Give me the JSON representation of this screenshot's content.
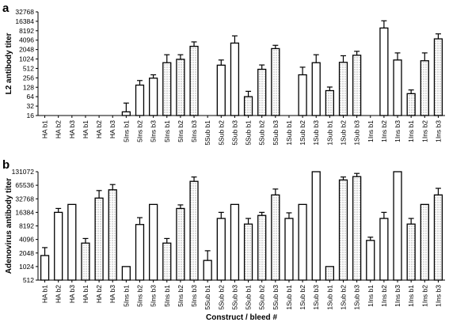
{
  "chart_data": [
    {
      "type": "bar",
      "panel": "a",
      "title": "",
      "xlabel": "",
      "ylabel": "L2 antibody titer",
      "yscale": "log2",
      "ylim": [
        16,
        32768
      ],
      "yticks": [
        "16",
        "32",
        "64",
        "128",
        "256",
        "512",
        "1024",
        "2048",
        "4096",
        "8192",
        "16384",
        "32768"
      ],
      "categories": [
        "HA b1",
        "HA b2",
        "HA b3",
        "HA b1",
        "HA b2",
        "HA b3",
        "5Ins b1",
        "5Ins b2",
        "5Ins b3",
        "5Ins b1",
        "5Ins b2",
        "5Ins b3",
        "5Sub b1",
        "5Sub b2",
        "5Sub b3",
        "5Sub b1",
        "5Sub b2",
        "5Sub b3",
        "1Sub b1",
        "1Sub b2",
        "1Sub b3",
        "1Sub b1",
        "1Sub b2",
        "1Sub b3",
        "1Ins b1",
        "1Ins b2",
        "1Ins b3",
        "1Ins b1",
        "1Ins b2",
        "1Ins b3"
      ],
      "values": [
        16,
        16,
        16,
        16,
        16,
        16,
        21,
        150,
        250,
        780,
        1000,
        2600,
        16,
        650,
        3300,
        64,
        480,
        2200,
        16,
        320,
        780,
        100,
        800,
        1350,
        16,
        10000,
        950,
        80,
        900,
        4500
      ],
      "error_upper": [
        16,
        16,
        16,
        16,
        16,
        16,
        40,
        210,
        320,
        1400,
        1400,
        3600,
        16,
        950,
        5600,
        95,
        660,
        2800,
        16,
        560,
        1400,
        130,
        1300,
        1800,
        16,
        17000,
        1600,
        105,
        1600,
        6500
      ],
      "fill": [
        "open",
        "open",
        "open",
        "dotted",
        "dotted",
        "dotted",
        "open",
        "open",
        "open",
        "dotted",
        "dotted",
        "dotted",
        "open",
        "open",
        "open",
        "dotted",
        "dotted",
        "dotted",
        "open",
        "open",
        "open",
        "dotted",
        "dotted",
        "dotted",
        "open",
        "open",
        "open",
        "dotted",
        "dotted",
        "dotted"
      ]
    },
    {
      "type": "bar",
      "panel": "b",
      "title": "",
      "xlabel": "Construct / bleed #",
      "ylabel": "Adenovirus antibody titer",
      "yscale": "log2",
      "ylim": [
        512,
        131072
      ],
      "yticks": [
        "512",
        "1024",
        "2048",
        "4096",
        "8192",
        "16384",
        "32768",
        "65536",
        "131072"
      ],
      "categories": [
        "HA b1",
        "HA b2",
        "HA b3",
        "HA b1",
        "HA b2",
        "HA b3",
        "5Ins b1",
        "5Ins b2",
        "5Ins b3",
        "5Ins b1",
        "5Ins b2",
        "5Ins b3",
        "5Sub b1",
        "5Sub b2",
        "5Sub b3",
        "5Sub b1",
        "5Sub b2",
        "5Sub b3",
        "1Sub b1",
        "1Sub b2",
        "1Sub b3",
        "1Sub b1",
        "1Sub b2",
        "1Sub b3",
        "1Ins b1",
        "1Ins b2",
        "1Ins b3",
        "1Ins b1",
        "1Ins b2",
        "1Ins b3"
      ],
      "values": [
        1800,
        16384,
        24576,
        3400,
        34000,
        52000,
        1024,
        8800,
        24576,
        3400,
        20000,
        80000,
        1400,
        12000,
        24576,
        9000,
        14000,
        40000,
        12000,
        24576,
        131072,
        1024,
        86000,
        102000,
        3900,
        12000,
        131072,
        9000,
        24576,
        40000
      ],
      "error_upper": [
        2700,
        20000,
        24576,
        4300,
        50000,
        68000,
        1024,
        12500,
        24576,
        4300,
        24000,
        100000,
        2300,
        16384,
        24576,
        12000,
        16384,
        54000,
        16000,
        24576,
        131072,
        1024,
        100000,
        120000,
        4600,
        16384,
        131072,
        12000,
        24576,
        56000
      ],
      "fill": [
        "open",
        "open",
        "open",
        "dotted",
        "dotted",
        "dotted",
        "open",
        "open",
        "open",
        "dotted",
        "dotted",
        "dotted",
        "open",
        "open",
        "open",
        "dotted",
        "dotted",
        "dotted",
        "open",
        "open",
        "open",
        "dotted",
        "dotted",
        "dotted",
        "open",
        "open",
        "open",
        "dotted",
        "dotted",
        "dotted"
      ]
    }
  ]
}
